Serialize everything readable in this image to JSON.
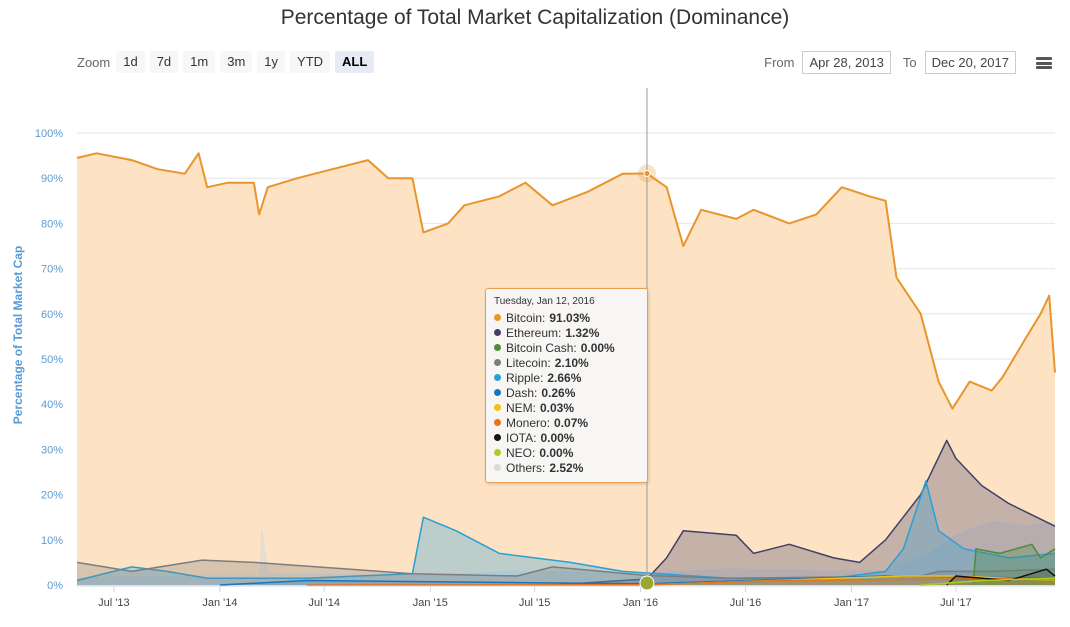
{
  "header": {
    "title": "Percentage of Total Market Capitalization (Dominance)"
  },
  "toolbar": {
    "zoom_label": "Zoom",
    "zoom_buttons": [
      {
        "label": "1d"
      },
      {
        "label": "7d"
      },
      {
        "label": "1m"
      },
      {
        "label": "3m"
      },
      {
        "label": "1y"
      },
      {
        "label": "YTD"
      },
      {
        "label": "ALL"
      }
    ],
    "active_zoom": "ALL",
    "from_label": "From",
    "from_value": "Apr 28, 2013",
    "to_label": "To",
    "to_value": "Dec 20, 2017"
  },
  "icons": {
    "menu": "hamburger-menu-icon"
  },
  "tooltip": {
    "date": "Tuesday, Jan 12, 2016",
    "rows": [
      {
        "name": "Bitcoin:",
        "value": "91.03%",
        "color": "#e8952d"
      },
      {
        "name": "Ethereum:",
        "value": "1.32%",
        "color": "#434066"
      },
      {
        "name": "Bitcoin Cash:",
        "value": "0.00%",
        "color": "#4f8a3a"
      },
      {
        "name": "Litecoin:",
        "value": "2.10%",
        "color": "#7d7d7d"
      },
      {
        "name": "Ripple:",
        "value": "2.66%",
        "color": "#2a9fd6"
      },
      {
        "name": "Dash:",
        "value": "0.26%",
        "color": "#1c75bc"
      },
      {
        "name": "NEM:",
        "value": "0.03%",
        "color": "#f2c010"
      },
      {
        "name": "Monero:",
        "value": "0.07%",
        "color": "#e8731c"
      },
      {
        "name": "IOTA:",
        "value": "0.00%",
        "color": "#111111"
      },
      {
        "name": "NEO:",
        "value": "0.00%",
        "color": "#a8cf1f"
      },
      {
        "name": "Others:",
        "value": "2.52%",
        "color": "#d9d9d9"
      }
    ]
  },
  "chart_data": {
    "type": "area",
    "title": "Percentage of Total Market Capitalization (Dominance)",
    "xlabel": "",
    "ylabel": "Percentage of Total Market Cap",
    "ylim": [
      0,
      100
    ],
    "yticks": [
      "0%",
      "10%",
      "20%",
      "30%",
      "40%",
      "50%",
      "60%",
      "70%",
      "80%",
      "90%",
      "100%"
    ],
    "xrange": [
      "2013-04-28",
      "2017-12-20"
    ],
    "xticks": [
      {
        "date": "2013-07-01",
        "label": "Jul '13"
      },
      {
        "date": "2014-01-01",
        "label": "Jan '14"
      },
      {
        "date": "2014-07-01",
        "label": "Jul '14"
      },
      {
        "date": "2015-01-01",
        "label": "Jan '15"
      },
      {
        "date": "2015-07-01",
        "label": "Jul '15"
      },
      {
        "date": "2016-01-01",
        "label": "Jan '16"
      },
      {
        "date": "2016-07-01",
        "label": "Jul '16"
      },
      {
        "date": "2017-01-01",
        "label": "Jan '17"
      },
      {
        "date": "2017-07-01",
        "label": "Jul '17"
      }
    ],
    "grid": true,
    "crosshair_date": "2016-01-12",
    "series": [
      {
        "name": "Bitcoin",
        "color": "#e8952d",
        "fill": "#fde2c4",
        "points": [
          [
            "2013-04-28",
            94.5
          ],
          [
            "2013-06-01",
            95.5
          ],
          [
            "2013-08-01",
            94
          ],
          [
            "2013-09-15",
            92
          ],
          [
            "2013-11-01",
            91
          ],
          [
            "2013-11-25",
            95.5
          ],
          [
            "2013-12-10",
            88
          ],
          [
            "2014-01-15",
            89
          ],
          [
            "2014-03-01",
            89
          ],
          [
            "2014-03-10",
            82
          ],
          [
            "2014-03-25",
            88
          ],
          [
            "2014-05-15",
            90
          ],
          [
            "2014-07-15",
            92
          ],
          [
            "2014-09-15",
            94
          ],
          [
            "2014-10-20",
            90
          ],
          [
            "2014-12-01",
            90
          ],
          [
            "2014-12-20",
            78
          ],
          [
            "2015-02-01",
            80
          ],
          [
            "2015-03-01",
            84
          ],
          [
            "2015-05-01",
            86
          ],
          [
            "2015-06-15",
            89
          ],
          [
            "2015-08-01",
            84
          ],
          [
            "2015-10-01",
            87
          ],
          [
            "2015-12-01",
            91
          ],
          [
            "2016-01-12",
            91.03
          ],
          [
            "2016-02-15",
            88
          ],
          [
            "2016-03-15",
            75
          ],
          [
            "2016-04-15",
            83
          ],
          [
            "2016-06-15",
            81
          ],
          [
            "2016-07-15",
            83
          ],
          [
            "2016-09-15",
            80
          ],
          [
            "2016-11-01",
            82
          ],
          [
            "2016-12-15",
            88
          ],
          [
            "2017-02-01",
            86
          ],
          [
            "2017-03-01",
            85
          ],
          [
            "2017-03-20",
            68
          ],
          [
            "2017-05-01",
            60
          ],
          [
            "2017-06-01",
            45
          ],
          [
            "2017-06-25",
            39
          ],
          [
            "2017-07-25",
            45
          ],
          [
            "2017-09-01",
            43
          ],
          [
            "2017-09-20",
            46
          ],
          [
            "2017-11-01",
            55
          ],
          [
            "2017-11-25",
            60
          ],
          [
            "2017-12-10",
            64
          ],
          [
            "2017-12-20",
            47
          ]
        ]
      },
      {
        "name": "Others",
        "color": "#dedede",
        "fill": "rgba(215,215,215,0.5)",
        "points": [
          [
            "2013-04-28",
            1.5
          ],
          [
            "2013-12-01",
            2
          ],
          [
            "2014-03-12",
            2
          ],
          [
            "2014-03-15",
            12
          ],
          [
            "2014-03-25",
            2.5
          ],
          [
            "2014-12-01",
            2
          ],
          [
            "2015-06-01",
            3
          ],
          [
            "2016-01-12",
            2.52
          ],
          [
            "2016-06-01",
            3.5
          ],
          [
            "2016-12-01",
            3
          ],
          [
            "2017-03-01",
            3
          ],
          [
            "2017-05-15",
            7
          ],
          [
            "2017-07-01",
            11
          ],
          [
            "2017-09-01",
            14
          ],
          [
            "2017-11-01",
            13
          ],
          [
            "2017-12-20",
            14
          ]
        ]
      },
      {
        "name": "Ethereum",
        "color": "#434066",
        "fill": "rgba(67,64,102,0.3)",
        "points": [
          [
            "2015-08-01",
            0
          ],
          [
            "2015-12-01",
            1
          ],
          [
            "2016-01-12",
            1.32
          ],
          [
            "2016-02-15",
            6
          ],
          [
            "2016-03-15",
            12
          ],
          [
            "2016-06-15",
            11
          ],
          [
            "2016-07-15",
            7
          ],
          [
            "2016-09-15",
            9
          ],
          [
            "2016-12-01",
            6
          ],
          [
            "2017-01-15",
            5
          ],
          [
            "2017-03-01",
            10
          ],
          [
            "2017-05-01",
            20
          ],
          [
            "2017-06-15",
            32
          ],
          [
            "2017-07-01",
            28
          ],
          [
            "2017-08-15",
            22
          ],
          [
            "2017-10-01",
            18
          ],
          [
            "2017-12-20",
            13
          ]
        ]
      },
      {
        "name": "Ripple",
        "color": "#2a9fd6",
        "fill": "rgba(42,159,214,0.3)",
        "points": [
          [
            "2013-04-28",
            1
          ],
          [
            "2013-08-01",
            4
          ],
          [
            "2013-10-01",
            3
          ],
          [
            "2013-12-10",
            1.5
          ],
          [
            "2014-06-01",
            1.5
          ],
          [
            "2014-12-01",
            2.5
          ],
          [
            "2014-12-20",
            15
          ],
          [
            "2015-02-15",
            12
          ],
          [
            "2015-05-01",
            7
          ],
          [
            "2015-09-01",
            5
          ],
          [
            "2015-12-01",
            3
          ],
          [
            "2016-01-12",
            2.66
          ],
          [
            "2016-06-01",
            1.5
          ],
          [
            "2016-12-01",
            1.5
          ],
          [
            "2017-03-01",
            3
          ],
          [
            "2017-04-01",
            8
          ],
          [
            "2017-05-10",
            23
          ],
          [
            "2017-06-01",
            12
          ],
          [
            "2017-07-15",
            8
          ],
          [
            "2017-10-01",
            6
          ],
          [
            "2017-12-20",
            7
          ]
        ]
      },
      {
        "name": "Litecoin",
        "color": "#7d7d7d",
        "fill": "rgba(125,125,125,0.3)",
        "points": [
          [
            "2013-04-28",
            5
          ],
          [
            "2013-08-01",
            3
          ],
          [
            "2013-12-01",
            5.5
          ],
          [
            "2014-03-01",
            5
          ],
          [
            "2014-12-01",
            2.5
          ],
          [
            "2015-06-01",
            2
          ],
          [
            "2015-08-01",
            4
          ],
          [
            "2016-01-12",
            2.1
          ],
          [
            "2016-06-01",
            1.5
          ],
          [
            "2017-05-01",
            2
          ],
          [
            "2017-06-01",
            3
          ],
          [
            "2017-09-01",
            3
          ],
          [
            "2017-12-20",
            3.5
          ]
        ]
      },
      {
        "name": "Bitcoin Cash",
        "color": "#4f8a3a",
        "fill": "rgba(79,138,58,0.3)",
        "points": [
          [
            "2017-07-31",
            0
          ],
          [
            "2017-08-05",
            8
          ],
          [
            "2017-09-15",
            7
          ],
          [
            "2017-11-10",
            9
          ],
          [
            "2017-11-25",
            6
          ],
          [
            "2017-12-20",
            8
          ]
        ]
      },
      {
        "name": "Dash",
        "color": "#1c75bc",
        "fill": "rgba(28,117,188,0.2)",
        "points": [
          [
            "2014-01-01",
            0
          ],
          [
            "2014-06-01",
            1
          ],
          [
            "2016-01-12",
            0.26
          ],
          [
            "2017-03-01",
            2
          ],
          [
            "2017-12-20",
            1.5
          ]
        ]
      },
      {
        "name": "NEM",
        "color": "#f2c010",
        "fill": "rgba(242,192,16,0.2)",
        "points": [
          [
            "2015-04-01",
            0
          ],
          [
            "2016-01-12",
            0.03
          ],
          [
            "2017-04-01",
            2
          ],
          [
            "2017-07-01",
            2
          ],
          [
            "2017-12-20",
            1
          ]
        ]
      },
      {
        "name": "Monero",
        "color": "#e8731c",
        "fill": "rgba(232,115,28,0.2)",
        "points": [
          [
            "2014-06-01",
            0
          ],
          [
            "2016-01-12",
            0.07
          ],
          [
            "2016-09-01",
            1
          ],
          [
            "2017-12-20",
            1.5
          ]
        ]
      },
      {
        "name": "IOTA",
        "color": "#111111",
        "fill": "rgba(17,17,17,0.15)",
        "points": [
          [
            "2017-06-15",
            0
          ],
          [
            "2017-07-01",
            2
          ],
          [
            "2017-10-01",
            1
          ],
          [
            "2017-12-05",
            3.5
          ],
          [
            "2017-12-20",
            2
          ]
        ]
      },
      {
        "name": "NEO",
        "color": "#a8cf1f",
        "fill": "rgba(168,207,31,0.2)",
        "points": [
          [
            "2017-05-01",
            0
          ],
          [
            "2017-08-15",
            1
          ],
          [
            "2017-12-20",
            1.5
          ]
        ]
      }
    ]
  }
}
